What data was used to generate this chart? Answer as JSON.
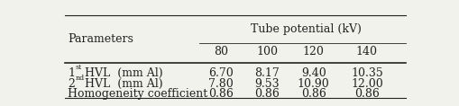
{
  "title": "Tube potential (kV)",
  "col_header": "Parameters",
  "sub_headers": [
    "80",
    "100",
    "120",
    "140"
  ],
  "rows": [
    {
      "label": "1",
      "label_super": "st",
      "label_rest": " HVL  (mm Al)",
      "values": [
        "6.70",
        "8.17",
        "9.40",
        "10.35"
      ]
    },
    {
      "label": "2",
      "label_super": "nd",
      "label_rest": " HVL  (mm Al)",
      "values": [
        "7.80",
        "9.53",
        "10.90",
        "12.00"
      ]
    },
    {
      "label": "Homogeneity coefficient",
      "label_super": "",
      "label_rest": "",
      "values": [
        "0.86",
        "0.86",
        "0.86",
        "0.86"
      ]
    }
  ],
  "bg_color": "#f2f2ed",
  "text_color": "#222222",
  "font_size": 9.0,
  "header_font_size": 9.0
}
